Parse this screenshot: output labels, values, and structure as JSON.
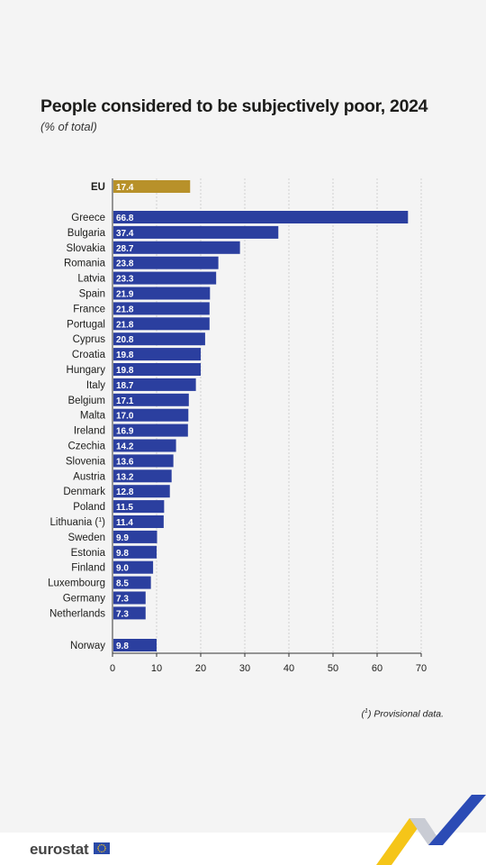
{
  "title": "People considered to be subjectively poor, 2024",
  "subtitle": "(% of total)",
  "footnote": {
    "marker": "1",
    "text": "Provisional data."
  },
  "logo": {
    "text": "eurostat",
    "flag_icon": "eu-flag-icon"
  },
  "colors": {
    "eu_bar": "#b8912a",
    "country_bar": "#2b3f9f",
    "background": "#f4f4f4",
    "deco_yellow": "#f5c518",
    "deco_blue": "#2b4bb5"
  },
  "chart_data": {
    "type": "bar",
    "orientation": "horizontal",
    "categories": [
      "EU",
      "Greece",
      "Bulgaria",
      "Slovakia",
      "Romania",
      "Latvia",
      "Spain",
      "France",
      "Portugal",
      "Cyprus",
      "Croatia",
      "Hungary",
      "Italy",
      "Belgium",
      "Malta",
      "Ireland",
      "Czechia",
      "Slovenia",
      "Austria",
      "Denmark",
      "Poland",
      "Lithuania (1)",
      "Sweden",
      "Estonia",
      "Finland",
      "Luxembourg",
      "Germany",
      "Netherlands",
      "Norway"
    ],
    "values": [
      17.4,
      66.8,
      37.4,
      28.7,
      23.8,
      23.3,
      21.9,
      21.8,
      21.8,
      20.8,
      19.8,
      19.8,
      18.7,
      17.1,
      17.0,
      16.9,
      14.2,
      13.6,
      13.2,
      12.8,
      11.5,
      11.4,
      9.9,
      9.8,
      9.0,
      8.5,
      7.3,
      7.3,
      9.8
    ],
    "value_labels": [
      "17.4",
      "66.8",
      "37.4",
      "28.7",
      "23.8",
      "23.3",
      "21.9",
      "21.8",
      "21.8",
      "20.8",
      "19.8",
      "19.8",
      "18.7",
      "17.1",
      "17.0",
      "16.9",
      "14.2",
      "13.6",
      "13.2",
      "12.8",
      "11.5",
      "11.4",
      "9.9",
      "9.8",
      "9.0",
      "8.5",
      "7.3",
      "7.3",
      "9.8"
    ],
    "xlim": [
      0,
      70
    ],
    "xticks": [
      "0",
      "10",
      "20",
      "30",
      "40",
      "50",
      "60",
      "70"
    ],
    "grid": "vertical dashed",
    "title": "People considered to be subjectively poor, 2024",
    "xlabel": "",
    "ylabel": ""
  }
}
